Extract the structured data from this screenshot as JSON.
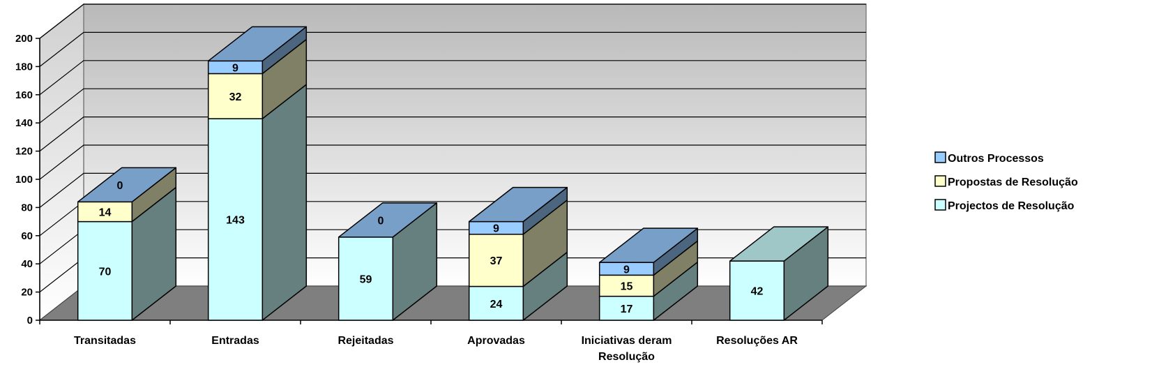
{
  "chart_data": {
    "type": "bar",
    "stacked": true,
    "three_d": true,
    "title": "",
    "xlabel": "",
    "ylabel": "",
    "ylim": [
      0,
      200
    ],
    "yticks": [
      "0",
      "20",
      "40",
      "60",
      "80",
      "100",
      "120",
      "140",
      "160",
      "180",
      "200"
    ],
    "grid": true,
    "legend_position": "right",
    "categories": [
      [
        "Transitadas"
      ],
      [
        "Entradas"
      ],
      [
        "Rejeitadas"
      ],
      [
        "Aprovadas"
      ],
      [
        "Iniciativas deram",
        "Resolução"
      ],
      [
        "Resoluções AR"
      ]
    ],
    "series": [
      {
        "name": "Projectos de Resolução",
        "color": "#CCFFFF",
        "values": [
          70,
          143,
          59,
          24,
          17,
          42
        ],
        "labels": [
          "70",
          "143",
          "59",
          "24",
          "17",
          "42"
        ]
      },
      {
        "name": "Propostas de Resolução",
        "color": "#FFFFCC",
        "values": [
          14,
          32,
          null,
          37,
          15,
          null
        ],
        "labels": [
          "14",
          "32",
          "",
          "37",
          "15",
          ""
        ]
      },
      {
        "name": "Outros Processos",
        "color": "#99CCFF",
        "values": [
          0,
          9,
          0,
          9,
          9,
          null
        ],
        "labels": [
          "0",
          "9",
          "0",
          "9",
          "9",
          ""
        ]
      }
    ],
    "legend_order": [
      "Outros Processos",
      "Propostas de Resolução",
      "Projectos de Resolução"
    ]
  }
}
